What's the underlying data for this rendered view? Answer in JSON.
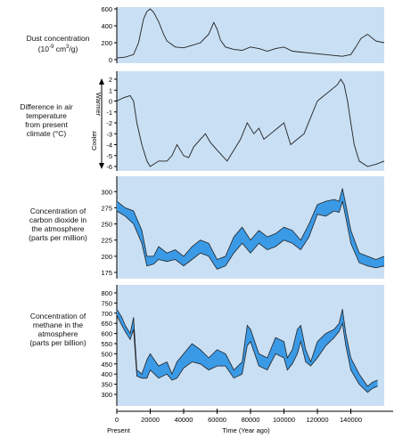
{
  "colors": {
    "panel_bg": "#c9dff4",
    "band_fill": "#3b9ae6",
    "line": "#222222"
  },
  "labels": {
    "p1": [
      "Dust concentration",
      "(10",
      "-9",
      " cm",
      "3",
      "/g)"
    ],
    "p2": [
      "Difference in air",
      "temperature",
      "from present",
      "climate (°C)"
    ],
    "p2_warmer": "Warmer",
    "p2_cooler": "Cooler",
    "p3": [
      "Concentration of",
      "carbon dioxide in",
      "the atmosphere",
      "(parts per million)"
    ],
    "p4": [
      "Concentration of",
      "methane in the",
      "atmosphere",
      "(parts per billion)"
    ],
    "present": "Present",
    "time": "Time (Year ago)"
  },
  "chart_data": [
    {
      "type": "line",
      "ylabel": "Dust concentration (10^-9 cm^3/g)",
      "xlim": [
        0,
        160000
      ],
      "ylim": [
        0,
        600
      ],
      "yticks": [
        0,
        200,
        400,
        600
      ],
      "grid": false,
      "series": [
        {
          "x": [
            0,
            5000,
            10000,
            13000,
            16000,
            18000,
            20000,
            22000,
            25000,
            28000,
            30000,
            35000,
            40000,
            45000,
            50000,
            55000,
            58000,
            60000,
            62000,
            65000,
            70000,
            75000,
            80000,
            85000,
            90000,
            95000,
            100000,
            105000,
            110000,
            115000,
            120000,
            125000,
            130000,
            135000,
            140000,
            143000,
            146000,
            150000,
            155000,
            160000
          ],
          "y": [
            20,
            30,
            60,
            200,
            480,
            570,
            600,
            560,
            450,
            300,
            220,
            150,
            140,
            170,
            200,
            300,
            440,
            360,
            230,
            150,
            120,
            110,
            150,
            130,
            100,
            130,
            150,
            100,
            90,
            80,
            70,
            60,
            50,
            40,
            60,
            150,
            250,
            300,
            220,
            200
          ]
        }
      ]
    },
    {
      "type": "line",
      "ylabel": "Difference in air temperature from present climate (°C)",
      "xlim": [
        0,
        160000
      ],
      "ylim": [
        -6,
        2
      ],
      "yticks": [
        -6,
        -5,
        -4,
        -3,
        -2,
        -1,
        0,
        1,
        2
      ],
      "grid": false,
      "series": [
        {
          "x": [
            0,
            4000,
            8000,
            10000,
            12000,
            15000,
            18000,
            20000,
            25000,
            30000,
            33000,
            36000,
            40000,
            43000,
            46000,
            50000,
            53000,
            56000,
            60000,
            63000,
            66000,
            70000,
            74000,
            78000,
            82000,
            85000,
            88000,
            92000,
            96000,
            100000,
            104000,
            108000,
            112000,
            116000,
            120000,
            124000,
            128000,
            132000,
            134000,
            136000,
            138000,
            140000,
            142000,
            145000,
            150000,
            155000,
            160000
          ],
          "y": [
            0,
            0.3,
            0.5,
            0,
            -2,
            -4,
            -5.5,
            -6,
            -5.5,
            -5.5,
            -5,
            -4,
            -5,
            -5.2,
            -4.2,
            -3.5,
            -3,
            -3.8,
            -4.5,
            -5,
            -5.5,
            -4.5,
            -3.5,
            -2,
            -3,
            -2.5,
            -3.5,
            -3,
            -2.5,
            -2,
            -4,
            -3.5,
            -3,
            -1.5,
            0,
            0.5,
            1,
            1.5,
            2,
            1.5,
            0,
            -2,
            -4,
            -5.5,
            -6,
            -5.8,
            -5.5
          ]
        }
      ]
    },
    {
      "type": "area",
      "ylabel": "Concentration of carbon dioxide in the atmosphere (parts per million)",
      "xlim": [
        0,
        160000
      ],
      "ylim": [
        175,
        310
      ],
      "yticks": [
        175,
        200,
        225,
        250,
        275,
        300
      ],
      "grid": false,
      "series": [
        {
          "name": "upper",
          "x": [
            0,
            5000,
            10000,
            15000,
            18000,
            22000,
            25000,
            30000,
            35000,
            40000,
            45000,
            50000,
            55000,
            60000,
            65000,
            70000,
            75000,
            80000,
            85000,
            90000,
            95000,
            100000,
            105000,
            110000,
            115000,
            120000,
            125000,
            130000,
            133000,
            135000,
            137000,
            140000,
            145000,
            150000,
            155000,
            160000
          ],
          "y": [
            285,
            275,
            270,
            240,
            200,
            200,
            215,
            205,
            210,
            200,
            215,
            225,
            220,
            195,
            200,
            230,
            245,
            225,
            240,
            230,
            235,
            245,
            240,
            225,
            250,
            280,
            285,
            288,
            285,
            305,
            280,
            240,
            205,
            200,
            195,
            200
          ]
        },
        {
          "name": "lower",
          "x": [
            0,
            5000,
            10000,
            15000,
            18000,
            22000,
            25000,
            30000,
            35000,
            40000,
            45000,
            50000,
            55000,
            60000,
            65000,
            70000,
            75000,
            80000,
            85000,
            90000,
            95000,
            100000,
            105000,
            110000,
            115000,
            120000,
            125000,
            130000,
            133000,
            135000,
            137000,
            140000,
            145000,
            150000,
            155000,
            160000
          ],
          "y": [
            270,
            262,
            250,
            220,
            185,
            188,
            195,
            192,
            195,
            185,
            195,
            205,
            200,
            180,
            185,
            205,
            220,
            205,
            220,
            210,
            215,
            225,
            220,
            210,
            230,
            265,
            262,
            270,
            268,
            285,
            260,
            220,
            190,
            185,
            182,
            185
          ]
        }
      ]
    },
    {
      "type": "area",
      "ylabel": "Concentration of methane in the atmosphere (parts per billion)",
      "xlim": [
        0,
        160000
      ],
      "ylim": [
        300,
        800
      ],
      "yticks": [
        300,
        350,
        400,
        450,
        500,
        550,
        600,
        650,
        700,
        750,
        800
      ],
      "grid": false,
      "series": [
        {
          "name": "upper",
          "x": [
            0,
            3000,
            5000,
            8000,
            10000,
            12000,
            15000,
            18000,
            20000,
            25000,
            30000,
            33000,
            36000,
            40000,
            45000,
            50000,
            55000,
            60000,
            65000,
            70000,
            75000,
            78000,
            80000,
            85000,
            90000,
            95000,
            100000,
            102000,
            105000,
            108000,
            110000,
            113000,
            116000,
            120000,
            125000,
            130000,
            133000,
            135000,
            137000,
            140000,
            145000,
            150000,
            153000,
            156000
          ],
          "y": [
            720,
            680,
            640,
            600,
            680,
            420,
            400,
            470,
            500,
            440,
            460,
            400,
            460,
            500,
            550,
            520,
            480,
            520,
            500,
            420,
            460,
            640,
            620,
            500,
            480,
            580,
            560,
            480,
            520,
            620,
            640,
            520,
            460,
            560,
            600,
            620,
            650,
            720,
            600,
            480,
            400,
            340,
            360,
            370
          ]
        },
        {
          "name": "lower",
          "x": [
            0,
            3000,
            5000,
            8000,
            10000,
            12000,
            15000,
            18000,
            20000,
            25000,
            30000,
            33000,
            36000,
            40000,
            45000,
            50000,
            55000,
            60000,
            65000,
            70000,
            75000,
            78000,
            80000,
            85000,
            90000,
            95000,
            100000,
            102000,
            105000,
            108000,
            110000,
            113000,
            116000,
            120000,
            125000,
            130000,
            133000,
            135000,
            137000,
            140000,
            145000,
            150000,
            153000,
            156000
          ],
          "y": [
            690,
            640,
            610,
            570,
            620,
            390,
            380,
            380,
            420,
            380,
            400,
            370,
            380,
            430,
            460,
            450,
            420,
            440,
            440,
            380,
            400,
            540,
            560,
            440,
            420,
            500,
            480,
            420,
            450,
            500,
            560,
            460,
            440,
            480,
            540,
            580,
            610,
            650,
            540,
            420,
            350,
            310,
            330,
            340
          ]
        }
      ]
    }
  ],
  "xaxis": {
    "ticks": [
      0,
      20000,
      40000,
      60000,
      80000,
      100000,
      120000,
      140000
    ],
    "tick_labels": [
      "0",
      "20000",
      "40000",
      "60000",
      "80000",
      "100000",
      "120000",
      "140000"
    ]
  }
}
